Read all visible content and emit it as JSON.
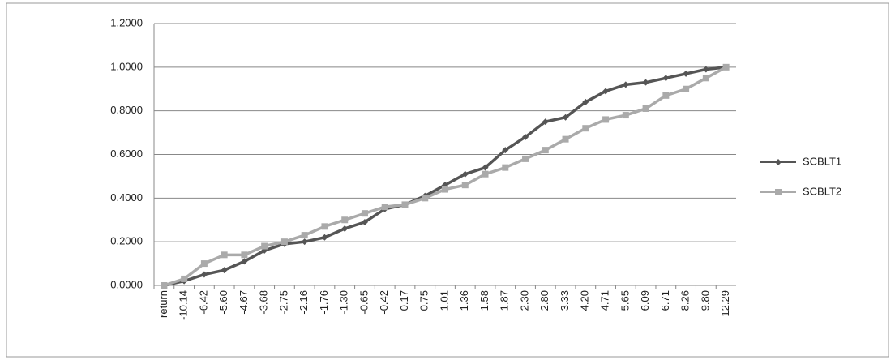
{
  "chart_data": {
    "type": "line",
    "categories": [
      "return",
      "-10.14",
      "-6.42",
      "-5.60",
      "-4.67",
      "-3.68",
      "-2.75",
      "-2.16",
      "-1.76",
      "-1.30",
      "-0.65",
      "-0.42",
      "0.17",
      "0.75",
      "1.01",
      "1.36",
      "1.58",
      "1.87",
      "2.30",
      "2.80",
      "3.33",
      "4.20",
      "4.71",
      "5.65",
      "6.09",
      "6.71",
      "8.26",
      "9.80",
      "12.29"
    ],
    "series": [
      {
        "name": "SCBLT1",
        "color": "#555555",
        "marker": "diamond",
        "values": [
          0.0,
          0.02,
          0.05,
          0.07,
          0.11,
          0.16,
          0.19,
          0.2,
          0.22,
          0.26,
          0.29,
          0.35,
          0.37,
          0.41,
          0.46,
          0.51,
          0.54,
          0.62,
          0.68,
          0.75,
          0.77,
          0.84,
          0.89,
          0.92,
          0.93,
          0.95,
          0.97,
          0.99,
          1.0
        ]
      },
      {
        "name": "SCBLT2",
        "color": "#aaaaaa",
        "marker": "square",
        "values": [
          0.0,
          0.03,
          0.1,
          0.14,
          0.14,
          0.18,
          0.2,
          0.23,
          0.27,
          0.3,
          0.33,
          0.36,
          0.37,
          0.4,
          0.44,
          0.46,
          0.51,
          0.54,
          0.58,
          0.62,
          0.67,
          0.72,
          0.76,
          0.78,
          0.81,
          0.87,
          0.9,
          0.95,
          1.0
        ]
      }
    ],
    "ylim": [
      0,
      1.2
    ],
    "yticks": [
      {
        "value": 0,
        "label": "0.0000"
      },
      {
        "value": 0.2,
        "label": "0.2000"
      },
      {
        "value": 0.4,
        "label": "0.4000"
      },
      {
        "value": 0.6,
        "label": "0.6000"
      },
      {
        "value": 0.8,
        "label": "0.8000"
      },
      {
        "value": 1,
        "label": "1.0000"
      },
      {
        "value": 1.2,
        "label": "1.2000"
      }
    ],
    "grid": true,
    "legend": "right"
  }
}
